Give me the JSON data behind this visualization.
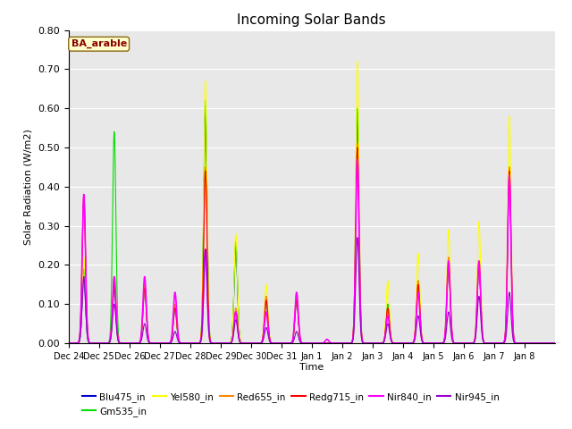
{
  "title": "Incoming Solar Bands",
  "xlabel": "Time",
  "ylabel": "Solar Radiation (W/m2)",
  "annotation": "BA_arable",
  "ylim": [
    0.0,
    0.8
  ],
  "yticks": [
    0.0,
    0.1,
    0.2,
    0.3,
    0.4,
    0.5,
    0.6,
    0.7,
    0.8
  ],
  "bg_color": "#e8e8e8",
  "series": [
    {
      "name": "Blu475_in",
      "color": "#0000cc",
      "lw": 0.8
    },
    {
      "name": "Gm535_in",
      "color": "#00dd00",
      "lw": 0.8
    },
    {
      "name": "Yel580_in",
      "color": "#ffff00",
      "lw": 0.8
    },
    {
      "name": "Red655_in",
      "color": "#ff8800",
      "lw": 0.8
    },
    {
      "name": "Redg715_in",
      "color": "#ff0000",
      "lw": 0.8
    },
    {
      "name": "Nir840_in",
      "color": "#ff00ff",
      "lw": 1.2
    },
    {
      "name": "Nir945_in",
      "color": "#9900cc",
      "lw": 0.8
    }
  ],
  "day_peaks": [
    {
      "day": 0,
      "label": "Dec 24",
      "peaks": {
        "Blu475_in": 0.17,
        "Gm535_in": 0.19,
        "Yel580_in": 0.22,
        "Red655_in": 0.38,
        "Redg715_in": 0.37,
        "Nir840_in": 0.38,
        "Nir945_in": 0.17
      }
    },
    {
      "day": 1,
      "label": "Dec 25",
      "peaks": {
        "Blu475_in": 0.14,
        "Gm535_in": 0.54,
        "Yel580_in": 0.17,
        "Red655_in": 0.17,
        "Redg715_in": 0.15,
        "Nir840_in": 0.17,
        "Nir945_in": 0.1
      }
    },
    {
      "day": 2,
      "label": "Dec 26",
      "peaks": {
        "Blu475_in": 0.14,
        "Gm535_in": 0.15,
        "Yel580_in": 0.15,
        "Red655_in": 0.15,
        "Redg715_in": 0.14,
        "Nir840_in": 0.17,
        "Nir945_in": 0.05
      }
    },
    {
      "day": 3,
      "label": "Dec 27",
      "peaks": {
        "Blu475_in": 0.09,
        "Gm535_in": 0.09,
        "Yel580_in": 0.1,
        "Red655_in": 0.1,
        "Redg715_in": 0.09,
        "Nir840_in": 0.13,
        "Nir945_in": 0.03
      }
    },
    {
      "day": 4,
      "label": "Dec 28",
      "peaks": {
        "Blu475_in": 0.6,
        "Gm535_in": 0.62,
        "Yel580_in": 0.67,
        "Red655_in": 0.45,
        "Redg715_in": 0.44,
        "Nir840_in": 0.24,
        "Nir945_in": 0.24
      }
    },
    {
      "day": 5,
      "label": "Dec 29",
      "peaks": {
        "Blu475_in": 0.25,
        "Gm535_in": 0.26,
        "Yel580_in": 0.28,
        "Red655_in": 0.09,
        "Redg715_in": 0.08,
        "Nir840_in": 0.08,
        "Nir945_in": 0.06
      }
    },
    {
      "day": 6,
      "label": "Dec 30",
      "peaks": {
        "Blu475_in": 0.11,
        "Gm535_in": 0.12,
        "Yel580_in": 0.15,
        "Red655_in": 0.12,
        "Redg715_in": 0.11,
        "Nir840_in": 0.08,
        "Nir945_in": 0.04
      }
    },
    {
      "day": 7,
      "label": "Dec 31",
      "peaks": {
        "Blu475_in": 0.11,
        "Gm535_in": 0.12,
        "Yel580_in": 0.13,
        "Red655_in": 0.12,
        "Redg715_in": 0.11,
        "Nir840_in": 0.13,
        "Nir945_in": 0.03
      }
    },
    {
      "day": 8,
      "label": "Jan 1",
      "peaks": {
        "Blu475_in": 0.0,
        "Gm535_in": 0.0,
        "Yel580_in": 0.0,
        "Red655_in": 0.0,
        "Redg715_in": 0.0,
        "Nir840_in": 0.01,
        "Nir945_in": 0.0
      }
    },
    {
      "day": 9,
      "label": "Jan 2",
      "peaks": {
        "Blu475_in": 0.59,
        "Gm535_in": 0.6,
        "Yel580_in": 0.72,
        "Red655_in": 0.51,
        "Redg715_in": 0.5,
        "Nir840_in": 0.47,
        "Nir945_in": 0.27
      }
    },
    {
      "day": 10,
      "label": "Jan 3",
      "peaks": {
        "Blu475_in": 0.09,
        "Gm535_in": 0.1,
        "Yel580_in": 0.16,
        "Red655_in": 0.09,
        "Redg715_in": 0.09,
        "Nir840_in": 0.07,
        "Nir945_in": 0.05
      }
    },
    {
      "day": 11,
      "label": "Jan 4",
      "peaks": {
        "Blu475_in": 0.15,
        "Gm535_in": 0.16,
        "Yel580_in": 0.23,
        "Red655_in": 0.16,
        "Redg715_in": 0.15,
        "Nir840_in": 0.13,
        "Nir945_in": 0.07
      }
    },
    {
      "day": 12,
      "label": "Jan 5",
      "peaks": {
        "Blu475_in": 0.2,
        "Gm535_in": 0.21,
        "Yel580_in": 0.29,
        "Red655_in": 0.22,
        "Redg715_in": 0.2,
        "Nir840_in": 0.21,
        "Nir945_in": 0.08
      }
    },
    {
      "day": 13,
      "label": "Jan 6",
      "peaks": {
        "Blu475_in": 0.2,
        "Gm535_in": 0.21,
        "Yel580_in": 0.31,
        "Red655_in": 0.21,
        "Redg715_in": 0.2,
        "Nir840_in": 0.21,
        "Nir945_in": 0.12
      }
    },
    {
      "day": 14,
      "label": "Jan 7",
      "peaks": {
        "Blu475_in": 0.44,
        "Gm535_in": 0.45,
        "Yel580_in": 0.58,
        "Red655_in": 0.45,
        "Redg715_in": 0.44,
        "Nir840_in": 0.43,
        "Nir945_in": 0.13
      }
    },
    {
      "day": 15,
      "label": "Jan 8",
      "peaks": {
        "Blu475_in": 0.0,
        "Gm535_in": 0.0,
        "Yel580_in": 0.0,
        "Red655_in": 0.0,
        "Redg715_in": 0.0,
        "Nir840_in": 0.0,
        "Nir945_in": 0.0
      }
    }
  ],
  "xtick_labels": [
    "Dec 24",
    "Dec 25",
    "Dec 26",
    "Dec 27",
    "Dec 28",
    "Dec 29",
    "Dec 30",
    "Dec 31",
    "Jan 1",
    "Jan 2",
    "Jan 3",
    "Jan 4",
    "Jan 5",
    "Jan 6",
    "Jan 7",
    "Jan 8"
  ]
}
